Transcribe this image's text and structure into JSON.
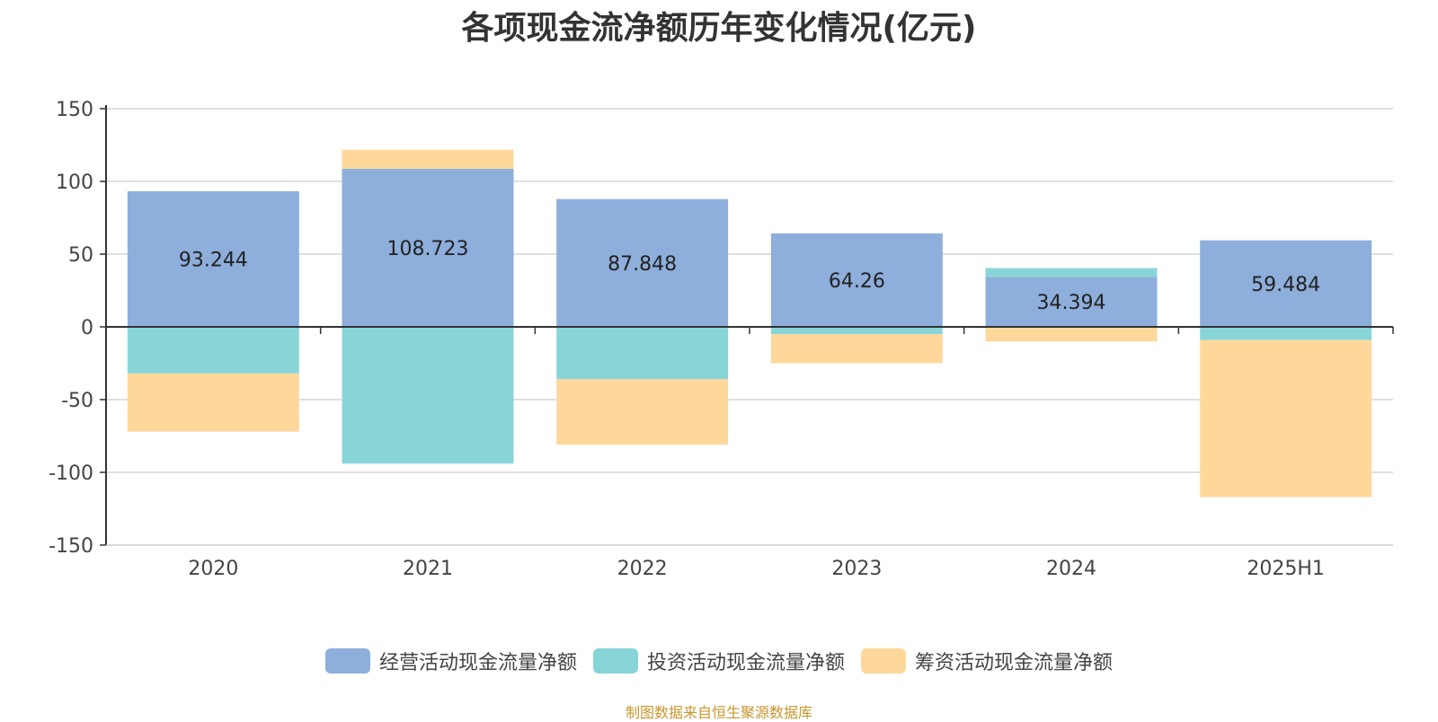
{
  "chart_data": {
    "type": "bar",
    "stacked": true,
    "title": "各项现金流净额历年变化情况(亿元)",
    "categories": [
      "2020",
      "2021",
      "2022",
      "2023",
      "2024",
      "2025H1"
    ],
    "ylim": [
      -150,
      150
    ],
    "yticks": [
      150,
      100,
      50,
      0,
      -50,
      -100,
      -150
    ],
    "grid": true,
    "legend_position": "bottom",
    "series": [
      {
        "name": "经营活动现金流量净额",
        "color": "#8eaedb",
        "values": [
          93.244,
          108.723,
          87.848,
          64.26,
          34.394,
          59.484
        ],
        "labels": [
          "93.244",
          "108.723",
          "87.848",
          "64.26",
          "34.394",
          "59.484"
        ]
      },
      {
        "name": "投资活动现金流量净额",
        "color": "#88d5d8",
        "values": [
          -32,
          -94,
          -36,
          -5,
          6,
          -9
        ]
      },
      {
        "name": "筹资活动现金流量净额",
        "color": "#fdd89a",
        "values": [
          -40,
          13,
          -45,
          -20,
          -10,
          -108
        ]
      }
    ]
  },
  "footer": {
    "source": "制图数据来自恒生聚源数据库"
  }
}
